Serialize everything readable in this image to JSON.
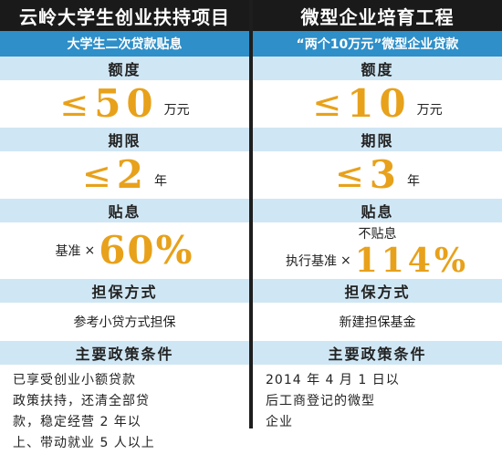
{
  "left": {
    "title": "云岭大学生创业扶持项目",
    "subtitle": "大学生二次贷款贴息",
    "amount_label": "额度",
    "amount_symbol": "≤",
    "amount_value": "50",
    "amount_unit": "万元",
    "term_label": "期限",
    "term_symbol": "≤",
    "term_value": "2",
    "term_unit": "年",
    "subsidy_label": "贴息",
    "subsidy_prefix": "基准",
    "subsidy_mult": "×",
    "subsidy_value": "60%",
    "guarantee_label": "担保方式",
    "guarantee_value": "参考小贷方式担保",
    "policy_label": "主要政策条件",
    "policy_lines": [
      "已享受创业小额贷款",
      "政策扶持，还清全部贷",
      "款，稳定经营 2 年以",
      "上、带动就业 5 人以上"
    ]
  },
  "right": {
    "title": "微型企业培育工程",
    "subtitle": "“两个10万元”微型企业贷款",
    "amount_label": "额度",
    "amount_symbol": "≤",
    "amount_value": "10",
    "amount_unit": "万元",
    "term_label": "期限",
    "term_symbol": "≤",
    "term_value": "3",
    "term_unit": "年",
    "subsidy_label": "贴息",
    "subsidy_note": "不贴息",
    "subsidy_prefix": "执行基准",
    "subsidy_mult": "×",
    "subsidy_value": "114%",
    "guarantee_label": "担保方式",
    "guarantee_value": "新建担保基金",
    "policy_label": "主要政策条件",
    "policy_lines": [
      "2014 年 4 月 1 日以",
      "后工商登记的微型",
      "企业"
    ]
  },
  "colors": {
    "title_bg": "#1a1a1a",
    "subtitle_bg": "#2e8fc9",
    "header_bg": "#cfe6f4",
    "accent": "#e8a11a"
  }
}
